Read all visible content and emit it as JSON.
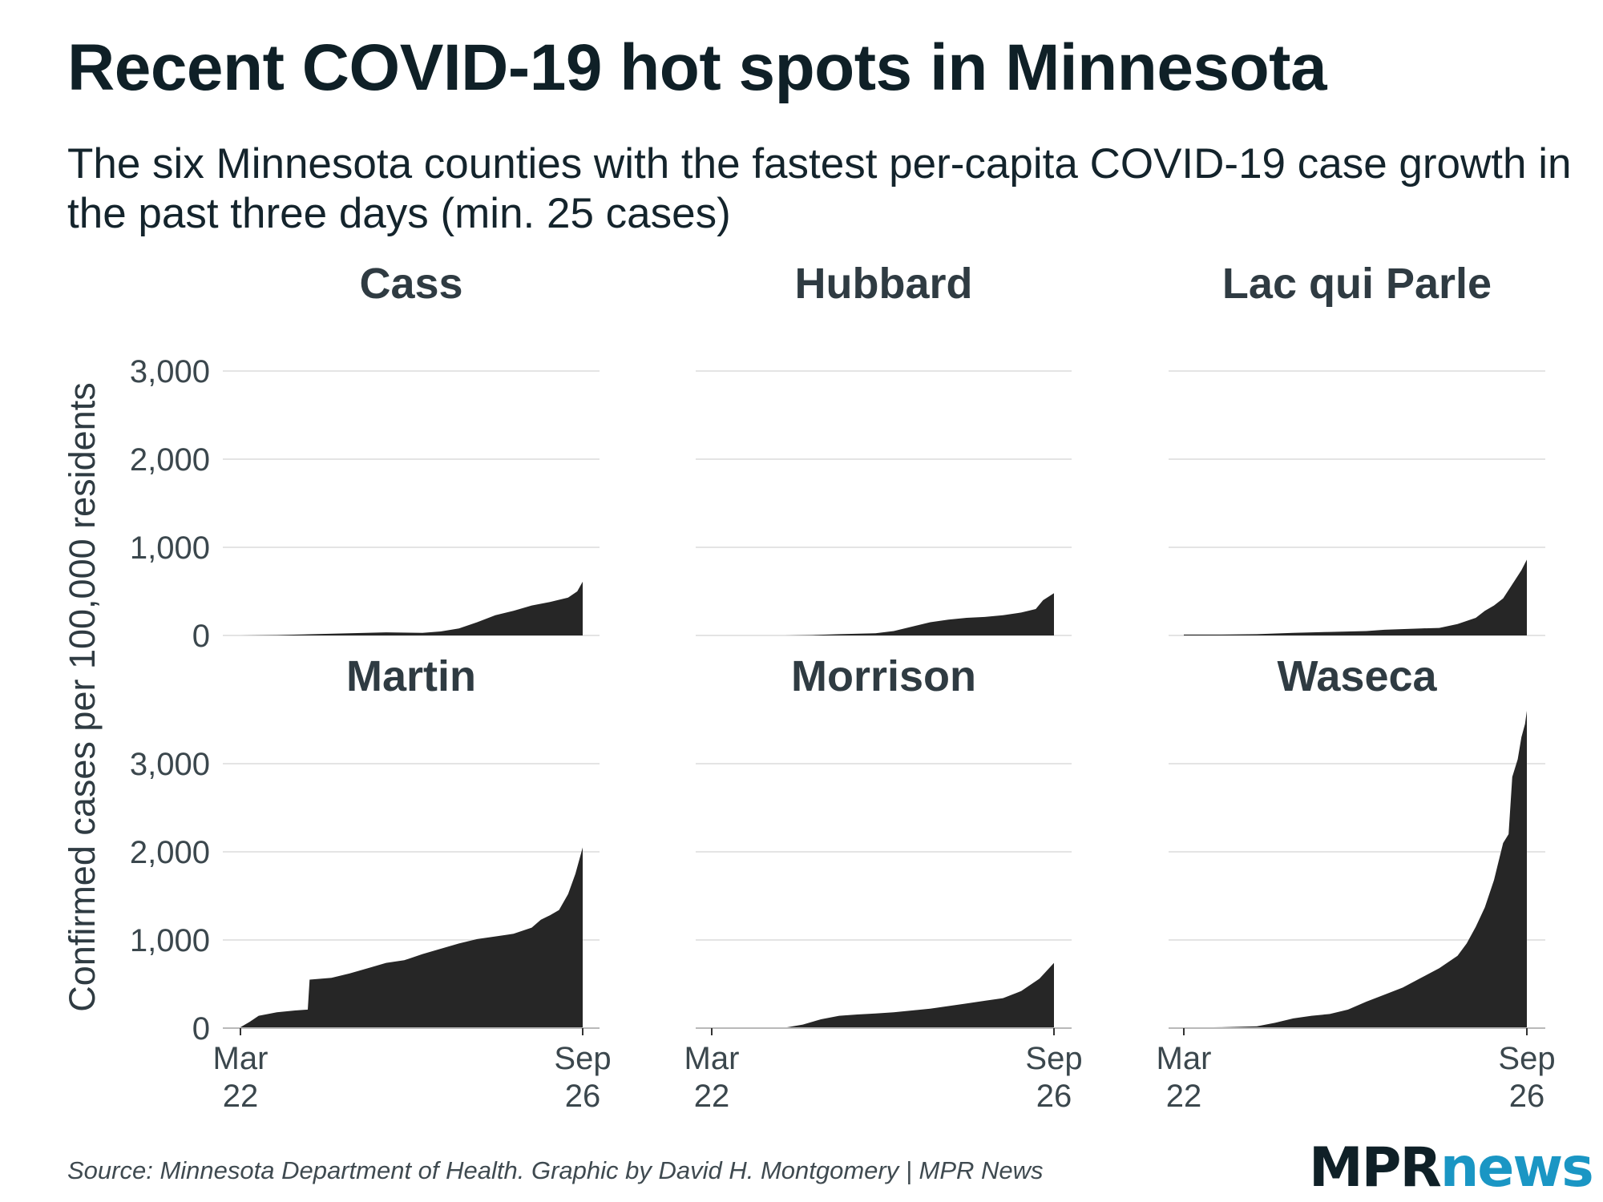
{
  "title": "Recent COVID-19 hot spots in Minnesota",
  "subtitle": "The six Minnesota counties with the fastest per-capita COVID-19 case growth in the past three days (min. 25 cases)",
  "source": "Source: Minnesota Department of Health. Graphic by David H. Montgomery | MPR News",
  "logo": {
    "part1": "MPR",
    "part2": "news"
  },
  "colors": {
    "area": "#262626",
    "title": "#0f2027",
    "logo_accent": "#1a96c4"
  },
  "chart_data": {
    "type": "area",
    "layout": "small-multiples 2x3",
    "ylabel": "Confirmed cases per 100,000 residents",
    "ylim": [
      0,
      3500
    ],
    "yticks": [
      0,
      1000,
      2000,
      3000
    ],
    "ytick_labels": [
      "0",
      "1,000",
      "2,000",
      "3,000"
    ],
    "xlim_days": [
      0,
      188
    ],
    "xticks": [
      {
        "day": 0,
        "line1": "Mar",
        "line2": "22"
      },
      {
        "day": 188,
        "line1": "Sep",
        "line2": "26"
      }
    ],
    "x_unit": "days since Mar 22",
    "series": [
      {
        "name": "Cass",
        "points": [
          [
            0,
            0
          ],
          [
            20,
            5
          ],
          [
            40,
            15
          ],
          [
            60,
            25
          ],
          [
            80,
            35
          ],
          [
            100,
            30
          ],
          [
            110,
            45
          ],
          [
            120,
            80
          ],
          [
            130,
            150
          ],
          [
            140,
            230
          ],
          [
            150,
            280
          ],
          [
            160,
            340
          ],
          [
            170,
            380
          ],
          [
            180,
            430
          ],
          [
            185,
            500
          ],
          [
            188,
            610
          ]
        ]
      },
      {
        "name": "Hubbard",
        "points": [
          [
            0,
            0
          ],
          [
            40,
            0
          ],
          [
            55,
            5
          ],
          [
            70,
            15
          ],
          [
            90,
            25
          ],
          [
            100,
            50
          ],
          [
            110,
            100
          ],
          [
            120,
            150
          ],
          [
            130,
            180
          ],
          [
            140,
            200
          ],
          [
            150,
            210
          ],
          [
            160,
            230
          ],
          [
            170,
            260
          ],
          [
            178,
            300
          ],
          [
            182,
            400
          ],
          [
            188,
            480
          ]
        ]
      },
      {
        "name": "Lac qui Parle",
        "points": [
          [
            0,
            10
          ],
          [
            20,
            10
          ],
          [
            40,
            15
          ],
          [
            60,
            30
          ],
          [
            80,
            40
          ],
          [
            100,
            50
          ],
          [
            110,
            65
          ],
          [
            130,
            80
          ],
          [
            140,
            85
          ],
          [
            150,
            130
          ],
          [
            160,
            200
          ],
          [
            165,
            280
          ],
          [
            170,
            340
          ],
          [
            175,
            420
          ],
          [
            180,
            580
          ],
          [
            185,
            740
          ],
          [
            188,
            860
          ]
        ]
      },
      {
        "name": "Martin",
        "points": [
          [
            0,
            10
          ],
          [
            5,
            70
          ],
          [
            10,
            140
          ],
          [
            20,
            180
          ],
          [
            30,
            200
          ],
          [
            37,
            210
          ],
          [
            38,
            550
          ],
          [
            50,
            570
          ],
          [
            60,
            620
          ],
          [
            70,
            680
          ],
          [
            80,
            740
          ],
          [
            90,
            770
          ],
          [
            100,
            840
          ],
          [
            110,
            900
          ],
          [
            120,
            960
          ],
          [
            130,
            1010
          ],
          [
            140,
            1040
          ],
          [
            150,
            1070
          ],
          [
            160,
            1140
          ],
          [
            165,
            1230
          ],
          [
            170,
            1280
          ],
          [
            175,
            1340
          ],
          [
            180,
            1520
          ],
          [
            184,
            1750
          ],
          [
            188,
            2050
          ]
        ]
      },
      {
        "name": "Morrison",
        "points": [
          [
            0,
            0
          ],
          [
            30,
            0
          ],
          [
            40,
            5
          ],
          [
            50,
            40
          ],
          [
            60,
            100
          ],
          [
            70,
            140
          ],
          [
            80,
            155
          ],
          [
            90,
            165
          ],
          [
            100,
            180
          ],
          [
            110,
            200
          ],
          [
            120,
            220
          ],
          [
            130,
            250
          ],
          [
            140,
            280
          ],
          [
            150,
            310
          ],
          [
            160,
            340
          ],
          [
            170,
            420
          ],
          [
            180,
            560
          ],
          [
            188,
            740
          ]
        ]
      },
      {
        "name": "Waseca",
        "points": [
          [
            0,
            5
          ],
          [
            20,
            10
          ],
          [
            40,
            20
          ],
          [
            50,
            60
          ],
          [
            60,
            110
          ],
          [
            70,
            140
          ],
          [
            80,
            160
          ],
          [
            90,
            210
          ],
          [
            100,
            300
          ],
          [
            110,
            380
          ],
          [
            120,
            460
          ],
          [
            130,
            570
          ],
          [
            140,
            680
          ],
          [
            150,
            820
          ],
          [
            155,
            960
          ],
          [
            160,
            1150
          ],
          [
            165,
            1370
          ],
          [
            170,
            1680
          ],
          [
            172,
            1850
          ],
          [
            175,
            2100
          ],
          [
            178,
            2200
          ],
          [
            180,
            2850
          ],
          [
            183,
            3050
          ],
          [
            185,
            3300
          ],
          [
            187,
            3450
          ],
          [
            188,
            3600
          ]
        ]
      }
    ]
  }
}
